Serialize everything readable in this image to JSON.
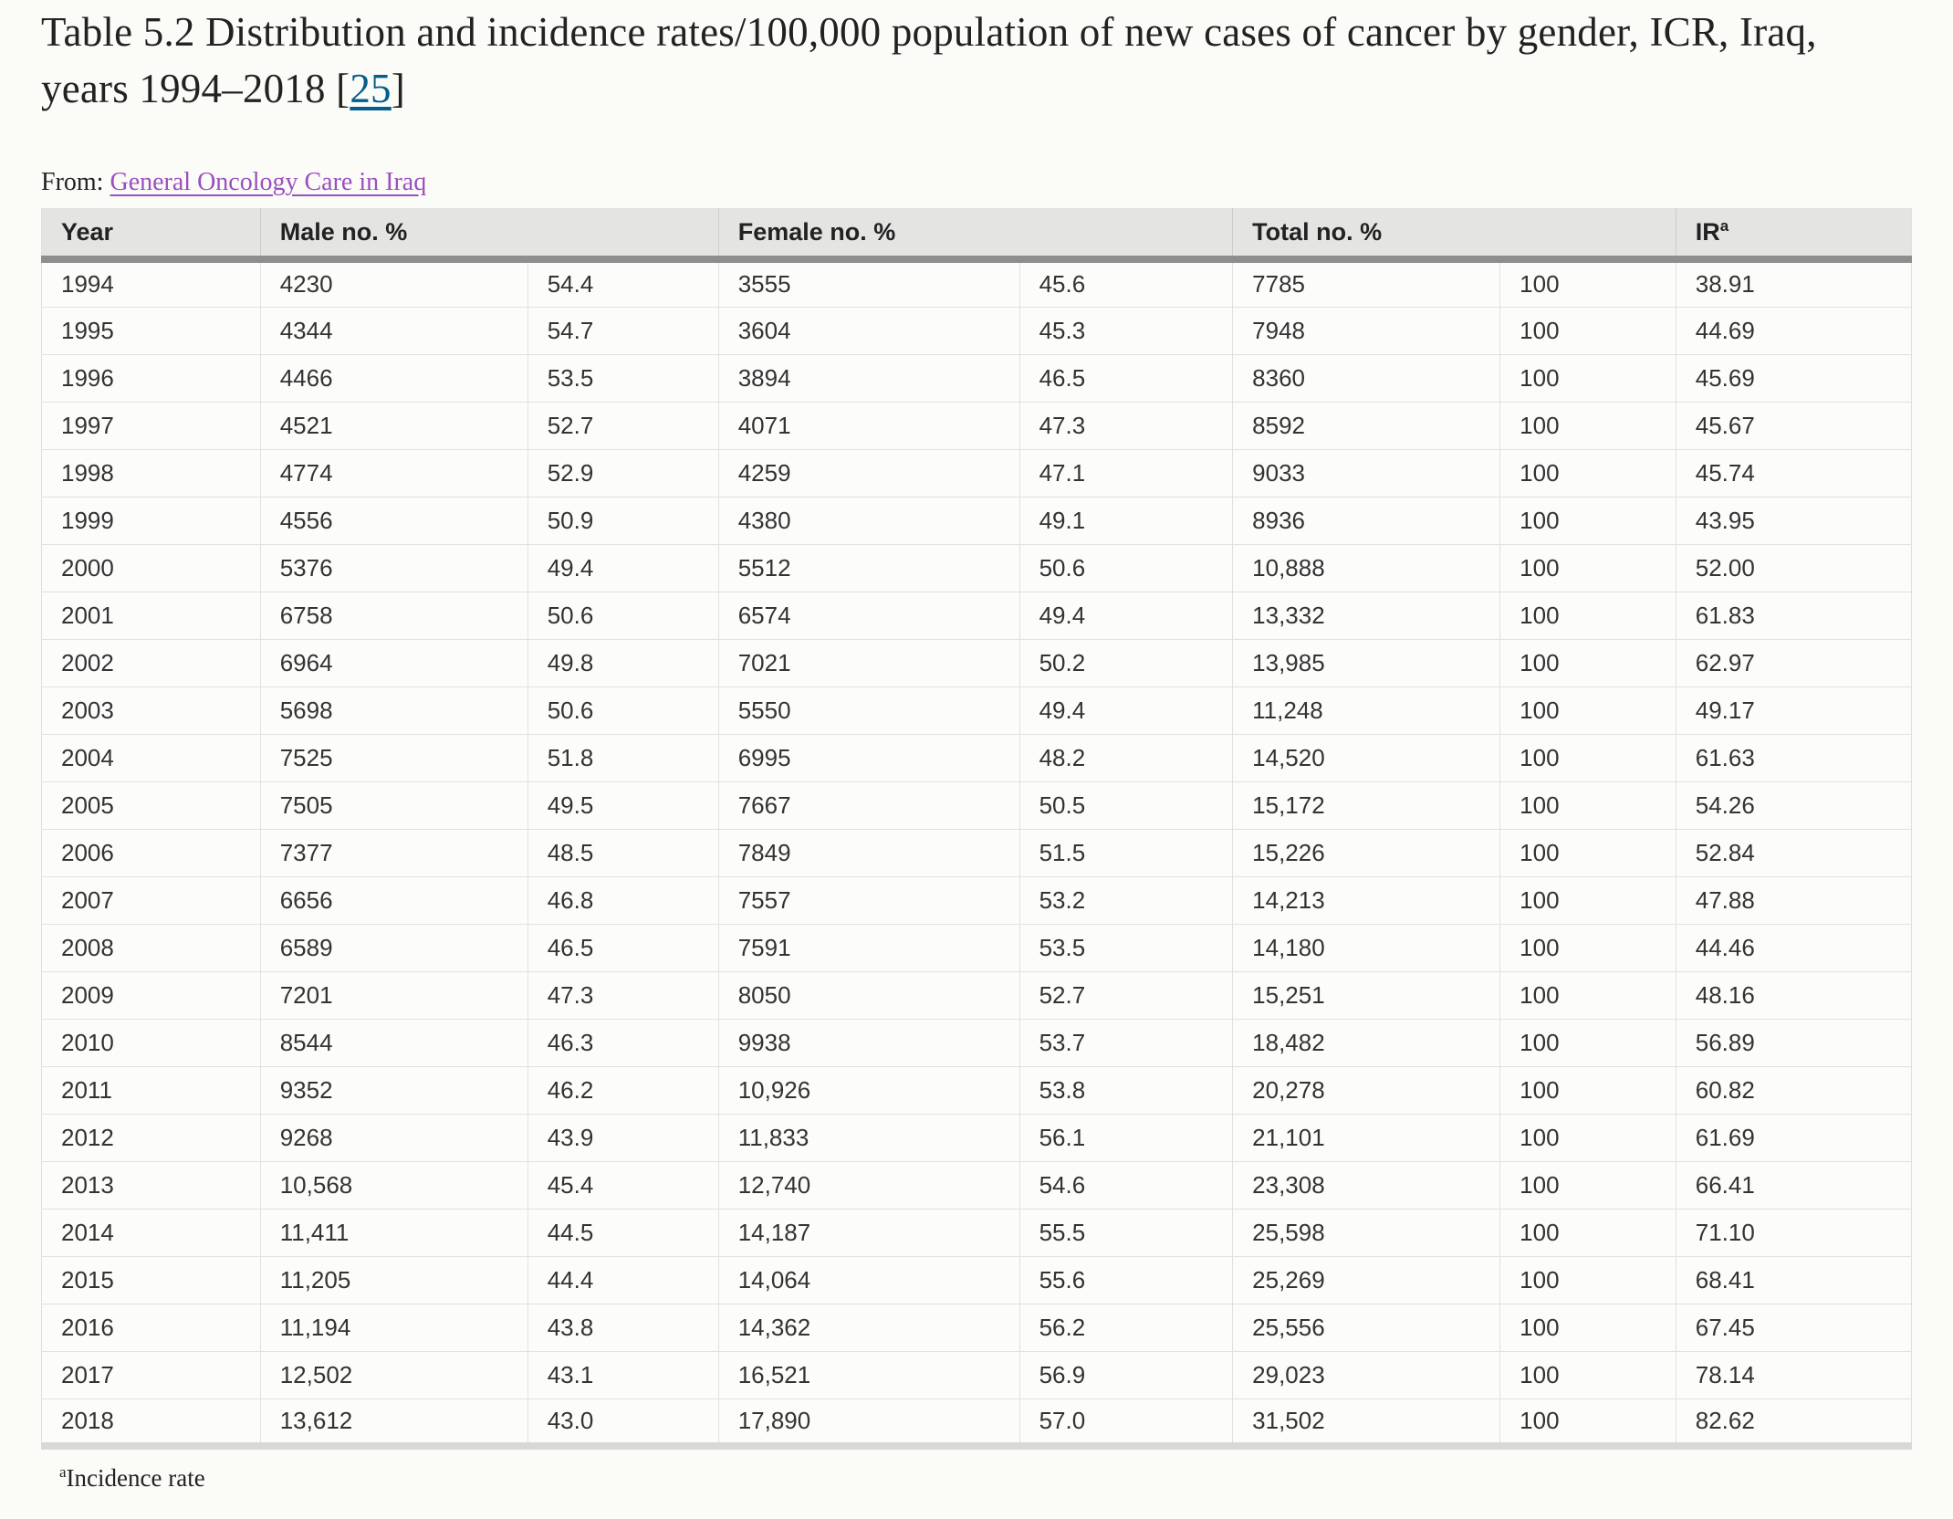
{
  "title": {
    "text": "Table 5.2 Distribution and incidence rates/100,000 population of new cases of cancer by gender, ICR, Iraq, years 1994–2018",
    "citation_prefix": " [",
    "citation": "25",
    "citation_suffix": "]"
  },
  "source": {
    "label": "From: ",
    "link_text": "General Oncology Care in Iraq"
  },
  "table": {
    "header_groups": [
      {
        "label": "Year",
        "span": 1,
        "sup": ""
      },
      {
        "label": "Male no. %",
        "span": 2,
        "sup": ""
      },
      {
        "label": "Female no. %",
        "span": 2,
        "sup": ""
      },
      {
        "label": "Total no. %",
        "span": 2,
        "sup": ""
      },
      {
        "label": "IR",
        "span": 1,
        "sup": "a"
      }
    ],
    "col_widths_pct": [
      11.7,
      14.3,
      10.2,
      16.1,
      11.4,
      14.3,
      9.4,
      12.6
    ],
    "rows": [
      [
        "1994",
        "4230",
        "54.4",
        "3555",
        "45.6",
        "7785",
        "100",
        "38.91"
      ],
      [
        "1995",
        "4344",
        "54.7",
        "3604",
        "45.3",
        "7948",
        "100",
        "44.69"
      ],
      [
        "1996",
        "4466",
        "53.5",
        "3894",
        "46.5",
        "8360",
        "100",
        "45.69"
      ],
      [
        "1997",
        "4521",
        "52.7",
        "4071",
        "47.3",
        "8592",
        "100",
        "45.67"
      ],
      [
        "1998",
        "4774",
        "52.9",
        "4259",
        "47.1",
        "9033",
        "100",
        "45.74"
      ],
      [
        "1999",
        "4556",
        "50.9",
        "4380",
        "49.1",
        "8936",
        "100",
        "43.95"
      ],
      [
        "2000",
        "5376",
        "49.4",
        "5512",
        "50.6",
        "10,888",
        "100",
        "52.00"
      ],
      [
        "2001",
        "6758",
        "50.6",
        "6574",
        "49.4",
        "13,332",
        "100",
        "61.83"
      ],
      [
        "2002",
        "6964",
        "49.8",
        "7021",
        "50.2",
        "13,985",
        "100",
        "62.97"
      ],
      [
        "2003",
        "5698",
        "50.6",
        "5550",
        "49.4",
        "11,248",
        "100",
        "49.17"
      ],
      [
        "2004",
        "7525",
        "51.8",
        "6995",
        "48.2",
        "14,520",
        "100",
        "61.63"
      ],
      [
        "2005",
        "7505",
        "49.5",
        "7667",
        "50.5",
        "15,172",
        "100",
        "54.26"
      ],
      [
        "2006",
        "7377",
        "48.5",
        "7849",
        "51.5",
        "15,226",
        "100",
        "52.84"
      ],
      [
        "2007",
        "6656",
        "46.8",
        "7557",
        "53.2",
        "14,213",
        "100",
        "47.88"
      ],
      [
        "2008",
        "6589",
        "46.5",
        "7591",
        "53.5",
        "14,180",
        "100",
        "44.46"
      ],
      [
        "2009",
        "7201",
        "47.3",
        "8050",
        "52.7",
        "15,251",
        "100",
        "48.16"
      ],
      [
        "2010",
        "8544",
        "46.3",
        "9938",
        "53.7",
        "18,482",
        "100",
        "56.89"
      ],
      [
        "2011",
        "9352",
        "46.2",
        "10,926",
        "53.8",
        "20,278",
        "100",
        "60.82"
      ],
      [
        "2012",
        "9268",
        "43.9",
        "11,833",
        "56.1",
        "21,101",
        "100",
        "61.69"
      ],
      [
        "2013",
        "10,568",
        "45.4",
        "12,740",
        "54.6",
        "23,308",
        "100",
        "66.41"
      ],
      [
        "2014",
        "11,411",
        "44.5",
        "14,187",
        "55.5",
        "25,598",
        "100",
        "71.10"
      ],
      [
        "2015",
        "11,205",
        "44.4",
        "14,064",
        "55.6",
        "25,269",
        "100",
        "68.41"
      ],
      [
        "2016",
        "11,194",
        "43.8",
        "14,362",
        "56.2",
        "25,556",
        "100",
        "67.45"
      ],
      [
        "2017",
        "12,502",
        "43.1",
        "16,521",
        "56.9",
        "29,023",
        "100",
        "78.14"
      ],
      [
        "2018",
        "13,612",
        "43.0",
        "17,890",
        "57.0",
        "31,502",
        "100",
        "82.62"
      ]
    ]
  },
  "footnote": {
    "sup": "a",
    "text": "Incidence rate"
  },
  "colors": {
    "citation_link": "#025e8d",
    "source_link": "#9b4fc0",
    "header_background": "#e4e4e2",
    "header_underline": "#8e8e8e",
    "row_border": "#e1e1df",
    "page_background": "#fbfbf7"
  }
}
